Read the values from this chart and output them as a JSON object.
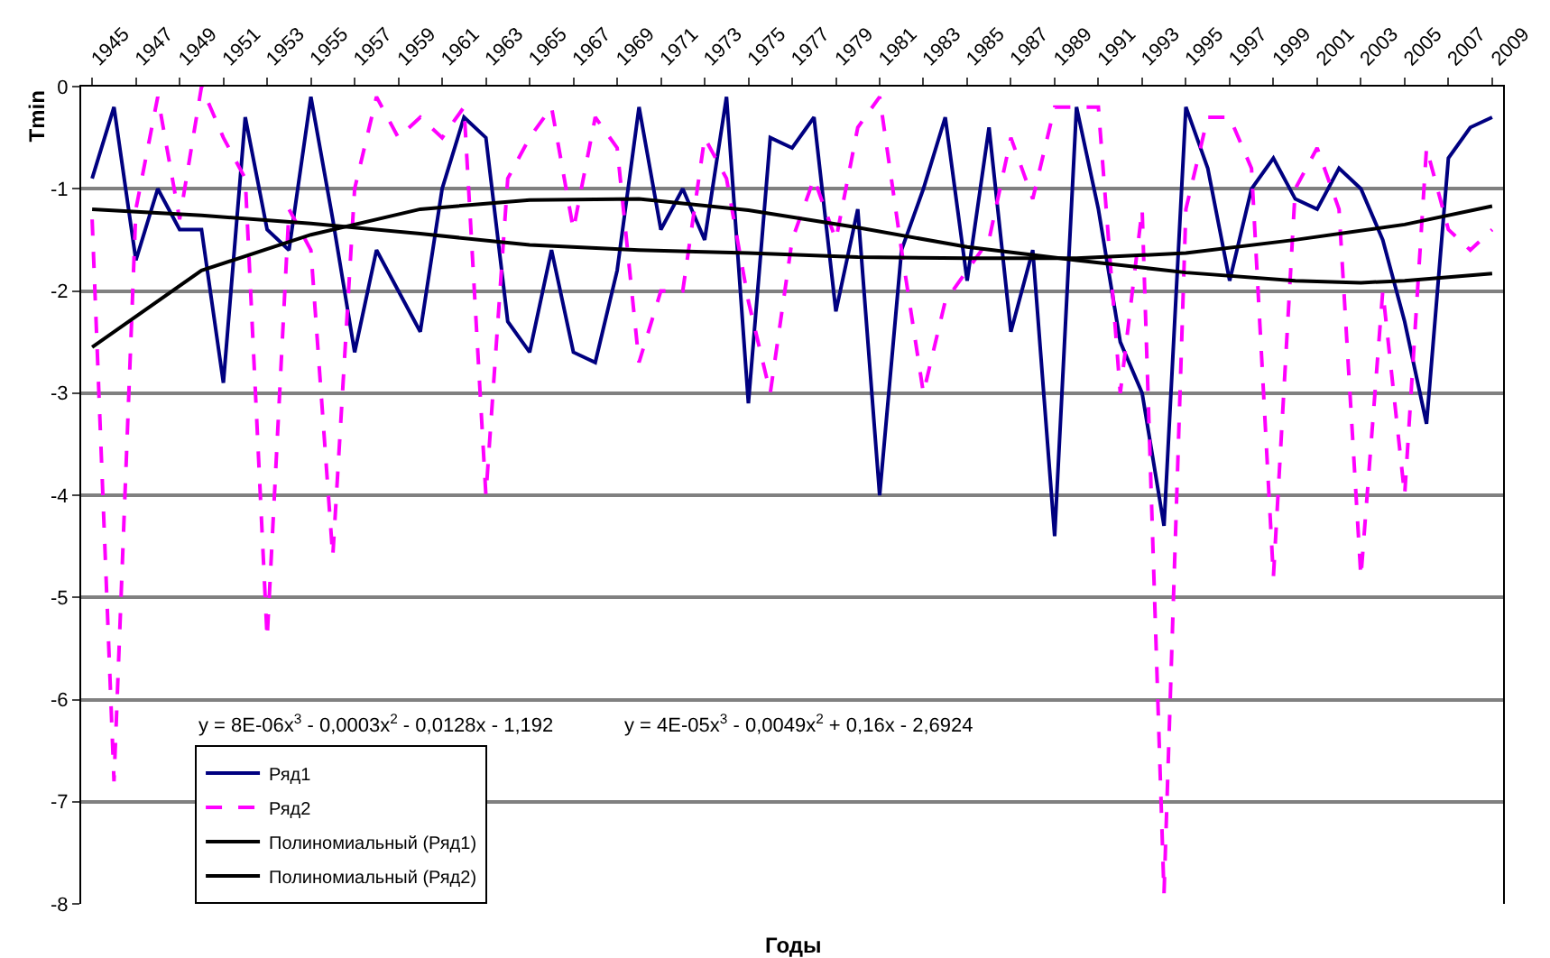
{
  "chart_data": {
    "type": "line",
    "xlabel": "Годы",
    "ylabel": "Tmin",
    "x": [
      1945,
      1946,
      1947,
      1948,
      1949,
      1950,
      1951,
      1952,
      1953,
      1954,
      1955,
      1956,
      1957,
      1958,
      1959,
      1960,
      1961,
      1962,
      1963,
      1964,
      1965,
      1966,
      1967,
      1968,
      1969,
      1970,
      1971,
      1972,
      1973,
      1974,
      1975,
      1976,
      1977,
      1978,
      1979,
      1980,
      1981,
      1982,
      1983,
      1984,
      1985,
      1986,
      1987,
      1988,
      1989,
      1990,
      1991,
      1992,
      1993,
      1994,
      1995,
      1996,
      1997,
      1998,
      1999,
      2000,
      2001,
      2002,
      2003,
      2004,
      2005,
      2006,
      2007,
      2008,
      2009
    ],
    "series": [
      {
        "name": "Ряд1",
        "color": "#000080",
        "line_style": "solid",
        "values": [
          -0.9,
          -0.2,
          -1.7,
          -1.0,
          -1.4,
          -1.4,
          -2.9,
          -0.3,
          -1.4,
          -1.6,
          -0.1,
          -1.3,
          -2.6,
          -1.6,
          -2.0,
          -2.4,
          -1.0,
          -0.3,
          -0.5,
          -2.3,
          -2.6,
          -1.6,
          -2.6,
          -2.7,
          -1.8,
          -0.2,
          -1.4,
          -1.0,
          -1.5,
          -0.1,
          -3.1,
          -0.5,
          -0.6,
          -0.3,
          -2.2,
          -1.2,
          -4.0,
          -1.6,
          -1.0,
          -0.3,
          -1.9,
          -0.4,
          -2.4,
          -1.6,
          -4.4,
          -0.2,
          -1.2,
          -2.5,
          -3.0,
          -4.3,
          -0.2,
          -0.8,
          -1.9,
          -1.0,
          -0.7,
          -1.1,
          -1.2,
          -0.8,
          -1.0,
          -1.5,
          -2.3,
          -3.3,
          -0.7,
          -0.4,
          -0.3
        ]
      },
      {
        "name": "Ряд2",
        "color": "#ff00ff",
        "line_style": "dashed",
        "values": [
          -1.3,
          -6.8,
          -1.2,
          -0.1,
          -1.3,
          0.0,
          -0.5,
          -0.9,
          -5.4,
          -1.2,
          -1.6,
          -4.6,
          -1.0,
          -0.1,
          -0.5,
          -0.3,
          -0.5,
          -0.2,
          -4.0,
          -0.9,
          -0.5,
          -0.2,
          -1.4,
          -0.3,
          -0.6,
          -2.7,
          -2.0,
          -2.0,
          -0.5,
          -0.9,
          -2.1,
          -3.0,
          -1.5,
          -0.9,
          -1.5,
          -0.4,
          -0.1,
          -1.6,
          -3.0,
          -2.1,
          -1.8,
          -1.5,
          -0.5,
          -1.1,
          -0.2,
          -0.2,
          -0.2,
          -3.0,
          -1.2,
          -7.9,
          -1.2,
          -0.3,
          -0.3,
          -0.8,
          -4.8,
          -1.0,
          -0.6,
          -1.2,
          -4.8,
          -2.0,
          -4.0,
          -0.6,
          -1.4,
          -1.6,
          -1.4
        ]
      },
      {
        "name": "Полиномиальный (Ряд1)",
        "color": "#000000",
        "line_style": "solid",
        "x": [
          1945,
          1950,
          1955,
          1960,
          1965,
          1970,
          1975,
          1980,
          1985,
          1990,
          1995,
          2000,
          2005,
          2009
        ],
        "values": [
          -1.2,
          -1.26,
          -1.34,
          -1.44,
          -1.55,
          -1.6,
          -1.63,
          -1.67,
          -1.68,
          -1.68,
          -1.63,
          -1.5,
          -1.35,
          -1.17
        ]
      },
      {
        "name": "Полиномиальный (Ряд2)",
        "color": "#000000",
        "line_style": "solid",
        "x": [
          1945,
          1950,
          1955,
          1960,
          1965,
          1970,
          1975,
          1980,
          1985,
          1990,
          1995,
          2000,
          2003,
          2005,
          2009
        ],
        "values": [
          -2.55,
          -1.8,
          -1.45,
          -1.2,
          -1.11,
          -1.1,
          -1.21,
          -1.38,
          -1.57,
          -1.7,
          -1.82,
          -1.9,
          -1.92,
          -1.9,
          -1.83
        ]
      }
    ],
    "xlim": [
      1944.5,
      2009.5
    ],
    "xticks": [
      1945,
      1947,
      1949,
      1951,
      1953,
      1955,
      1957,
      1959,
      1961,
      1963,
      1965,
      1967,
      1969,
      1971,
      1973,
      1975,
      1977,
      1979,
      1981,
      1983,
      1985,
      1987,
      1989,
      1991,
      1993,
      1995,
      1997,
      1999,
      2001,
      2003,
      2005,
      2007,
      2009
    ],
    "ylim": [
      -8,
      0
    ],
    "yticks": [
      -8,
      -7,
      -6,
      -5,
      -4,
      -3,
      -2,
      -1,
      0
    ],
    "grid": "y",
    "legend": "bottom left",
    "marker": "none",
    "annotations": [
      "y = 8E-06x$^{3}$ - 0,0003x$^{2}$ - 0,0128x - 1,192",
      "y = 4E-05x$^{3}$ - 0,0049x$^{2}$ + 0,16x - 2,6924"
    ]
  }
}
